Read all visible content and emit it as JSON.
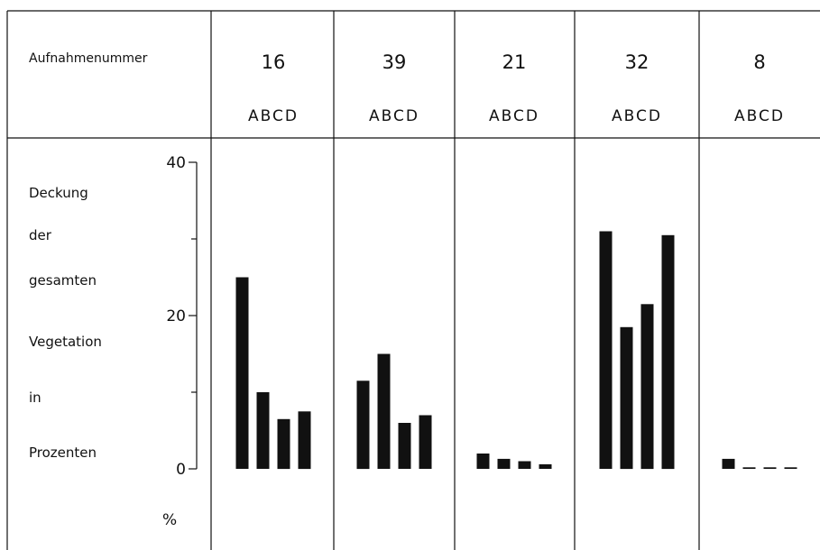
{
  "header": {
    "row_label": "Aufnahmenummer",
    "letters_label": "ABCD"
  },
  "y_axis": {
    "label_lines": [
      "Deckung",
      "der",
      "gesamten",
      "Vegetation",
      "in",
      "Prozenten"
    ],
    "unit": "%"
  },
  "chart_data": {
    "type": "bar",
    "title": "",
    "xlabel": "Aufnahmenummer",
    "ylabel": "Deckung der gesamten Vegetation in Prozenten",
    "y_unit": "%",
    "ylim": [
      0,
      40
    ],
    "y_ticks": [
      0,
      20,
      40
    ],
    "y_minor_ticks": [
      10,
      30
    ],
    "grid": false,
    "legend": "none",
    "bar_color": "#111111",
    "categories": [
      "A",
      "B",
      "C",
      "D"
    ],
    "groups": [
      {
        "aufnahme": "16",
        "values": [
          25,
          10,
          6.5,
          7.5
        ]
      },
      {
        "aufnahme": "39",
        "values": [
          11.5,
          15,
          6,
          7
        ]
      },
      {
        "aufnahme": "21",
        "values": [
          2,
          1.3,
          1,
          0.6
        ]
      },
      {
        "aufnahme": "32",
        "values": [
          31,
          18.5,
          21.5,
          30.5
        ]
      },
      {
        "aufnahme": "8",
        "values": [
          1.3,
          0.2,
          0.2,
          0.2
        ]
      }
    ]
  }
}
